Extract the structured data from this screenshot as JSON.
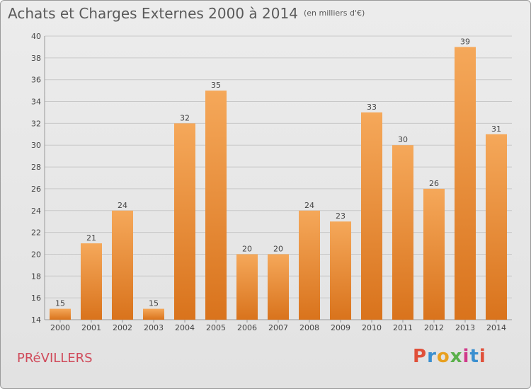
{
  "header": {
    "title": "Achats et Charges Externes 2000 à 2014",
    "unit": "(en milliers d'€)"
  },
  "footer": {
    "commune": "PRéVILLERS",
    "logo": "Proxiti",
    "logo_colors": [
      "#e0503a",
      "#3a8fd0",
      "#e8a020",
      "#5ab04a",
      "#d03a8a",
      "#3a8fd0",
      "#e0503a"
    ]
  },
  "colors": {
    "bar_light": "#f5a85a",
    "bar_dark": "#d9731c",
    "grid": "#c8c8c8",
    "axis_text": "#444444"
  },
  "chart_data": {
    "type": "bar",
    "title": "Achats et Charges Externes 2000 à 2014",
    "xlabel": "",
    "ylabel": "",
    "categories": [
      "2000",
      "2001",
      "2002",
      "2003",
      "2004",
      "2005",
      "2006",
      "2007",
      "2008",
      "2009",
      "2010",
      "2011",
      "2012",
      "2013",
      "2014"
    ],
    "values": [
      15,
      21,
      24,
      15,
      32,
      35,
      20,
      20,
      24,
      23,
      33,
      30,
      26,
      39,
      31
    ],
    "ylim": [
      14,
      40
    ],
    "yticks": [
      14,
      16,
      18,
      20,
      22,
      24,
      26,
      28,
      30,
      32,
      34,
      36,
      38,
      40
    ],
    "grid": true
  }
}
